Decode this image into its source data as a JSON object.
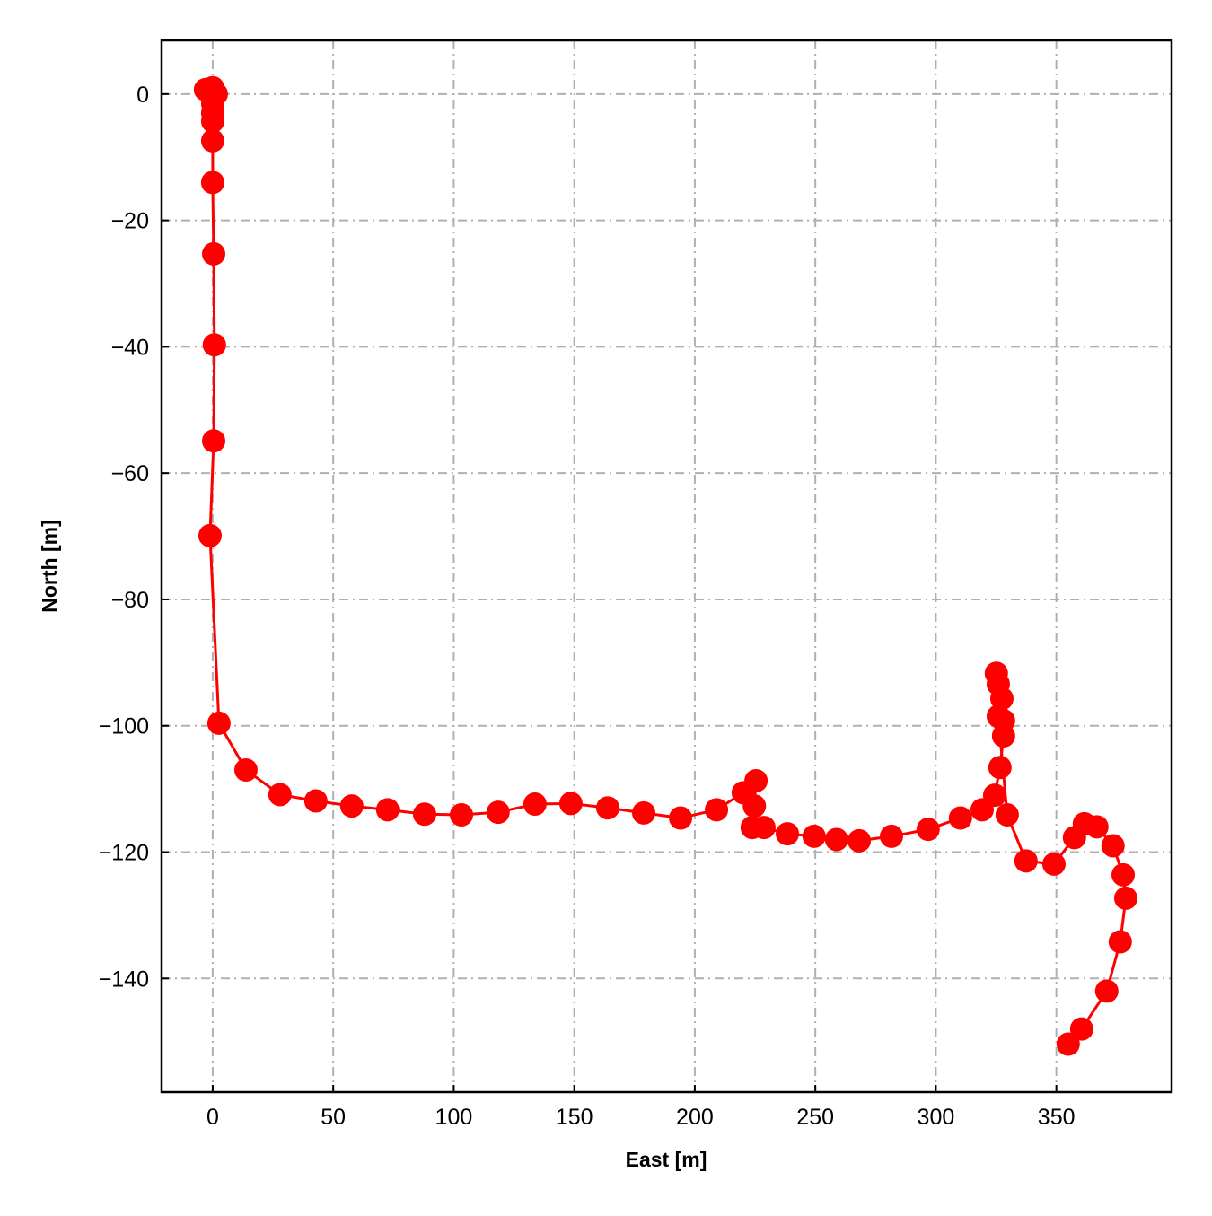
{
  "chart_data": {
    "type": "line",
    "xlabel": "East [m]",
    "ylabel": "North [m]",
    "x": [
      -3,
      0,
      1.5,
      0,
      0,
      0,
      0,
      0,
      0.4,
      0.7,
      0.4,
      -1.1,
      2.6,
      13.8,
      27.9,
      42.8,
      57.7,
      72.6,
      87.9,
      103.2,
      118.4,
      133.7,
      148.6,
      163.9,
      178.8,
      194.1,
      209,
      220.1,
      225.4,
      224.7,
      223.8,
      228.7,
      238.4,
      249.5,
      258.8,
      268.2,
      281.6,
      296.8,
      310.2,
      319.2,
      324.4,
      326.6,
      328.1,
      328.1,
      327.4,
      325.9,
      325.1,
      325.9,
      329.6,
      337.4,
      349,
      357.5,
      361.6,
      366.8,
      373.5,
      377.7,
      378.8,
      376.5,
      370.9,
      360.5,
      354.9
    ],
    "series": [
      {
        "color": "#ff0000",
        "values": [
          0.7,
          1,
          0,
          -1.5,
          -3,
          -4.3,
          -7.4,
          -14,
          -25.3,
          -39.7,
          -54.9,
          -69.9,
          -99.6,
          -107,
          -110.9,
          -111.9,
          -112.7,
          -113.3,
          -114,
          -114.1,
          -113.7,
          -112.4,
          -112.3,
          -113,
          -113.8,
          -114.6,
          -113.3,
          -110.6,
          -108.7,
          -112.7,
          -116.1,
          -116.1,
          -117.1,
          -117.5,
          -118,
          -118.2,
          -117.5,
          -116.4,
          -114.6,
          -113.3,
          -111,
          -106.6,
          -101.6,
          -99.2,
          -95.7,
          -93.4,
          -91.7,
          -98.5,
          -114.1,
          -121.4,
          -121.9,
          -117.7,
          -115.5,
          -116,
          -119,
          -123.6,
          -127.3,
          -134.2,
          -142,
          -148,
          -150.4
        ]
      }
    ],
    "xlim": [
      -21.2,
      397.8
    ],
    "ylim": [
      -158,
      8.5
    ],
    "xticks": [
      0,
      50,
      100,
      150,
      200,
      250,
      300,
      350
    ],
    "yticks": [
      0,
      {
        "value": -20,
        "label": "−20"
      },
      {
        "value": -40,
        "label": "−40"
      },
      {
        "value": -60,
        "label": "−60"
      },
      {
        "value": -80,
        "label": "−80"
      },
      {
        "value": -100,
        "label": "−100"
      },
      {
        "value": -120,
        "label": "−120"
      },
      {
        "value": -140,
        "label": "−140"
      }
    ],
    "grid": true
  }
}
